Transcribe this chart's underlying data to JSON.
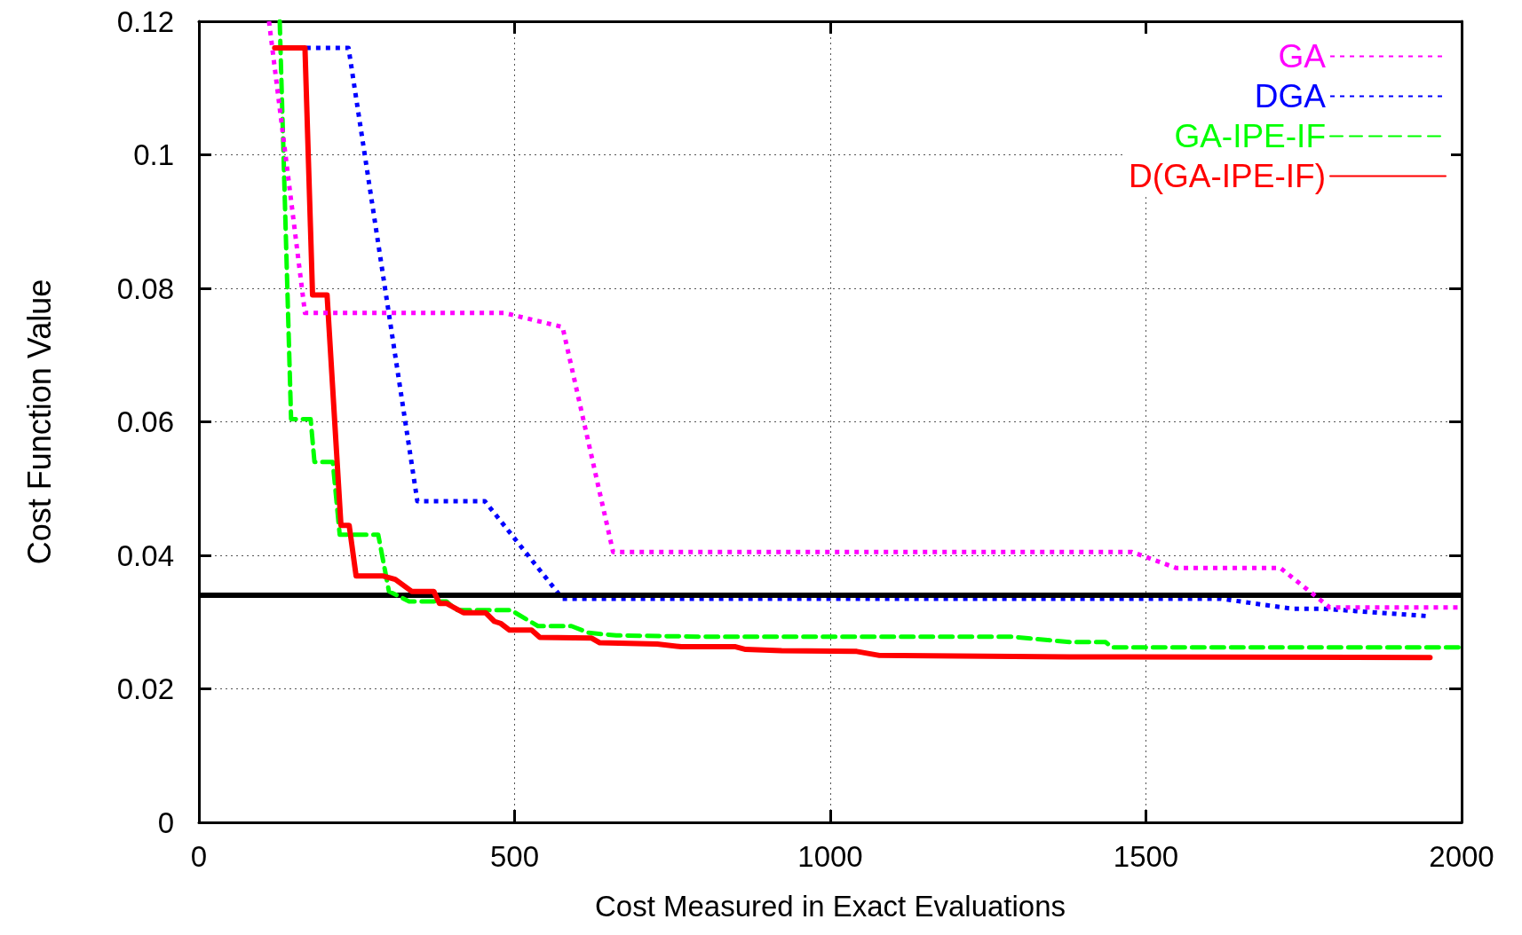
{
  "chart_data": {
    "type": "line",
    "xlabel": "Cost Measured in Exact Evaluations",
    "ylabel": "Cost Function Value",
    "xlim": [
      0,
      2000
    ],
    "xticks": [
      0,
      500,
      1000,
      1500,
      2000
    ],
    "ylim": [
      0,
      0.12
    ],
    "yticks": [
      0,
      0.02,
      0.04,
      0.06,
      0.08,
      0.1,
      0.12
    ],
    "grid": true,
    "legend": "top right",
    "marker": "none",
    "ref_lines": [
      {
        "axis": "y",
        "value": 0.034,
        "color": "#000000",
        "line_style": "solid"
      }
    ],
    "series": [
      {
        "name": "GA",
        "color": "#ff00ff",
        "line_style": "dotted",
        "x": [
          111,
          168,
          484,
          576,
          656,
          1478,
          1548,
          1713,
          1791,
          2000
        ],
        "values": [
          0.12,
          0.0763,
          0.0763,
          0.0742,
          0.0405,
          0.0405,
          0.0381,
          0.0381,
          0.0322,
          0.0322
        ]
      },
      {
        "name": "DGA",
        "color": "#0000ff",
        "line_style": "dotted",
        "x": [
          170,
          237,
          346,
          453,
          576,
          1619,
          1731,
          1780,
          1945
        ],
        "values": [
          0.116,
          0.116,
          0.0481,
          0.0481,
          0.0335,
          0.0335,
          0.032,
          0.032,
          0.0309
        ]
      },
      {
        "name": "GA-IPE-IF",
        "color": "#00ff00",
        "line_style": "dashed",
        "x": [
          128,
          146,
          177,
          183,
          212,
          223,
          284,
          301,
          333,
          392,
          408,
          494,
          537,
          590,
          617,
          661,
          806,
          1288,
          1379,
          1436,
          1447,
          2000
        ],
        "values": [
          0.12,
          0.0604,
          0.0604,
          0.054,
          0.054,
          0.0431,
          0.0431,
          0.0346,
          0.0331,
          0.0331,
          0.0318,
          0.0318,
          0.0294,
          0.0294,
          0.0284,
          0.028,
          0.0278,
          0.0278,
          0.027,
          0.027,
          0.0262,
          0.0262
        ]
      },
      {
        "name": "D(GA-IPE-IF)",
        "color": "#ff0000",
        "line_style": "solid",
        "x": [
          120,
          168,
          180,
          203,
          225,
          238,
          249,
          292,
          311,
          337,
          372,
          381,
          392,
          419,
          454,
          468,
          478,
          492,
          527,
          540,
          622,
          635,
          726,
          764,
          850,
          866,
          923,
          1042,
          1078,
          1379,
          1950
        ],
        "values": [
          0.116,
          0.116,
          0.079,
          0.079,
          0.0445,
          0.0445,
          0.0369,
          0.0369,
          0.0364,
          0.0346,
          0.0346,
          0.0328,
          0.0328,
          0.0314,
          0.0314,
          0.0301,
          0.0298,
          0.0288,
          0.0288,
          0.0277,
          0.0276,
          0.0269,
          0.0267,
          0.0263,
          0.0263,
          0.0259,
          0.0257,
          0.0256,
          0.025,
          0.0248,
          0.0247
        ]
      }
    ]
  }
}
